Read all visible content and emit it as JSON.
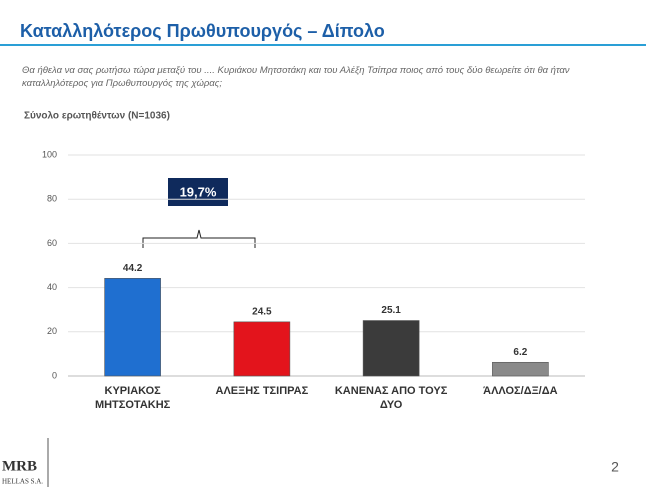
{
  "chart_data": {
    "type": "bar",
    "title": "Καταλληλότερος Πρωθυπουργός – Δίπολο",
    "question": "Θα ήθελα να σας ρωτήσω τώρα μεταξύ του .... Κυριάκου Μητσοτάκη και του Αλέξη Τσίπρα ποιος από τους δύο θεωρείτε ότι θα ήταν καταλληλότερος για Πρωθυπουργός της χώρας;",
    "subtitle": "Σύνολο ερωτηθέντων (N=1036)",
    "categories": [
      "ΚΥΡΙΑΚΟΣ ΜΗΤΣΟΤΑΚΗΣ",
      "ΑΛΕΞΗΣ ΤΣΙΠΡΑΣ",
      "ΚΑΝΕΝΑΣ ΑΠΟ ΤΟΥΣ ΔΥΟ",
      "ΆΛΛΟΣ/ΔΞ/ΔΑ"
    ],
    "values": [
      44.2,
      24.5,
      25.1,
      6.2
    ],
    "colors": [
      "#1f6fd0",
      "#e3141c",
      "#3b3b3b",
      "#8a8a8a"
    ],
    "ylim": [
      0,
      100
    ],
    "yticks": [
      0,
      20,
      40,
      60,
      80,
      100
    ],
    "grid": true,
    "annotation": "19,7%"
  },
  "footer": {
    "logo": "MRB",
    "logo_sub": "HELLAS S.A.",
    "page_number": "2"
  }
}
